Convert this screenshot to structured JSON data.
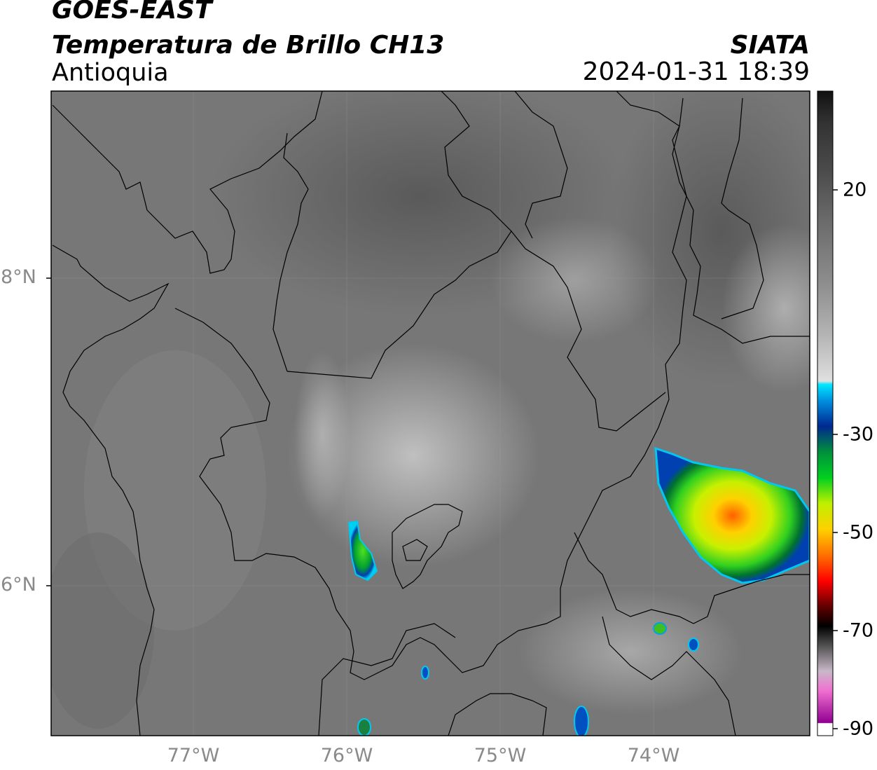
{
  "header": {
    "line1": "GOES-EAST",
    "line2": "Temperatura de Brillo CH13",
    "line3": "Antioquia",
    "org": "SIATA",
    "datetime": "2024-01-31 18:39"
  },
  "axes": {
    "lat_labels": [
      "8°N",
      "6°N"
    ],
    "lon_labels": [
      "77°W",
      "76°W",
      "75°W",
      "74°W"
    ]
  },
  "colorbar": {
    "ticks": [
      "20",
      "-30",
      "-50",
      "-70",
      "-90"
    ],
    "colors": {
      "warm_gray": "#7a7a7a",
      "cyan": "#00d8f0",
      "blue": "#0030a0",
      "green": "#00c030",
      "yellow": "#f0f000",
      "orange": "#ff8000",
      "red": "#e00000",
      "black": "#000000",
      "magenta": "#c050c0"
    }
  }
}
